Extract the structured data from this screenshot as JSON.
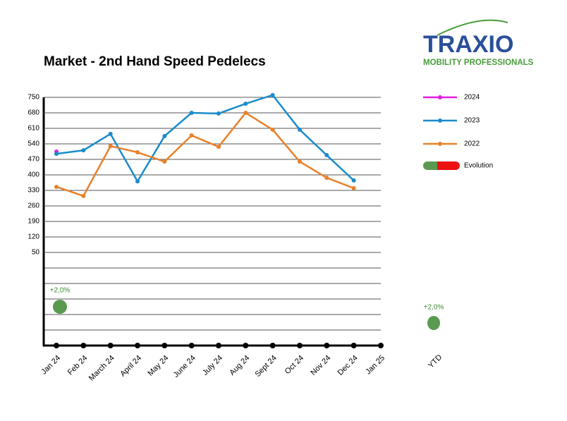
{
  "chart_data": {
    "type": "line",
    "title": "Market - 2nd Hand Speed Pedelecs",
    "categories": [
      "Jan 24",
      "Feb 24",
      "March 24",
      "April 24",
      "May 24",
      "June 24",
      "July 24",
      "Aug 24",
      "Sept 24",
      "Oct 24",
      "Nov 24",
      "Dec 24",
      "Jan 25"
    ],
    "series": [
      {
        "name": "2024",
        "color": "#e020e0",
        "values": [
          505,
          null,
          null,
          null,
          null,
          null,
          null,
          null,
          null,
          null,
          null,
          null,
          null
        ]
      },
      {
        "name": "2023",
        "color": "#1a8ccc",
        "values": [
          495,
          511,
          585,
          371,
          575,
          680,
          677,
          721,
          760,
          604,
          489,
          375,
          null
        ]
      },
      {
        "name": "2022",
        "color": "#e8812a",
        "values": [
          346,
          305,
          530,
          502,
          460,
          578,
          527,
          680,
          604,
          460,
          387,
          340,
          null
        ]
      }
    ],
    "ylim": [
      -370,
      750
    ],
    "yticks": [
      750,
      680,
      610,
      540,
      470,
      400,
      330,
      260,
      190,
      120,
      50
    ],
    "grid": true,
    "evolution": {
      "name": "Evolution",
      "labels": [
        "+2,0%"
      ],
      "ytd_category": "YTD",
      "ytd_label": "+2,0%"
    },
    "logo": {
      "name": "TRAXIO",
      "tagline": "MOBILITY PROFESSIONALS"
    }
  }
}
